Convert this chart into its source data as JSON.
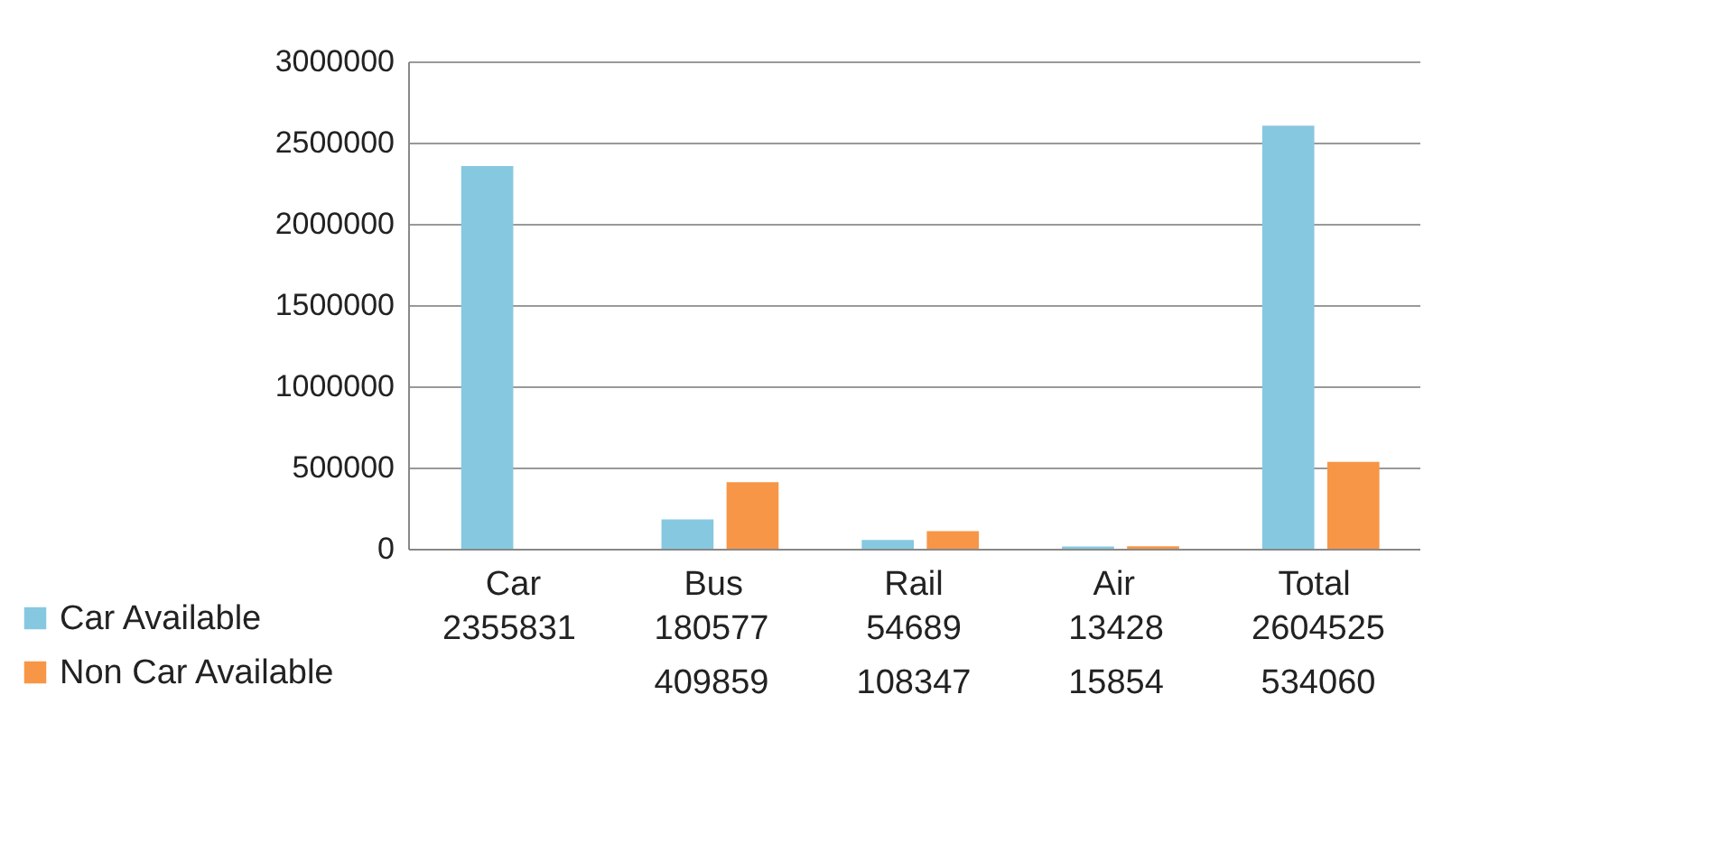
{
  "chart_data": {
    "type": "bar",
    "categories": [
      "Car",
      "Bus",
      "Rail",
      "Air",
      "Total"
    ],
    "series": [
      {
        "name": "Car Available",
        "color": "#86c8e0",
        "values": [
          2355831,
          180577,
          54689,
          13428,
          2604525
        ]
      },
      {
        "name": "Non Car Available",
        "color": "#f79646",
        "values": [
          null,
          409859,
          108347,
          15854,
          534060
        ]
      }
    ],
    "ylim": [
      0,
      3000000
    ],
    "yticks": [
      0,
      500000,
      1000000,
      1500000,
      2000000,
      2500000,
      3000000
    ],
    "grid": "y",
    "legend": "bottom left",
    "data_labels": true
  }
}
